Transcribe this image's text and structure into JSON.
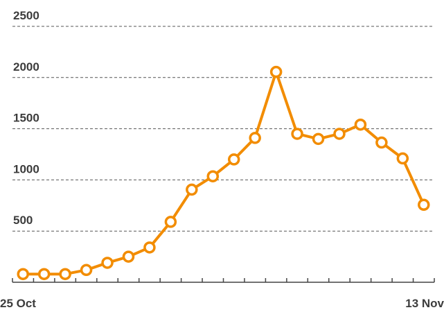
{
  "chart_data": {
    "type": "line",
    "categories": [
      "25 Oct",
      null,
      null,
      null,
      null,
      null,
      null,
      null,
      null,
      null,
      null,
      null,
      null,
      null,
      null,
      null,
      null,
      null,
      null,
      "13 Nov"
    ],
    "series": [
      {
        "color": "#f28c00",
        "values": [
          80,
          80,
          80,
          120,
          190,
          250,
          340,
          590,
          905,
          1035,
          1200,
          1410,
          2055,
          1450,
          1400,
          1450,
          1540,
          1365,
          1210,
          757
        ]
      }
    ],
    "ylim": [
      0,
      2500
    ],
    "yticks": [
      500,
      1000,
      1500,
      2000,
      2500
    ],
    "grid": true
  }
}
